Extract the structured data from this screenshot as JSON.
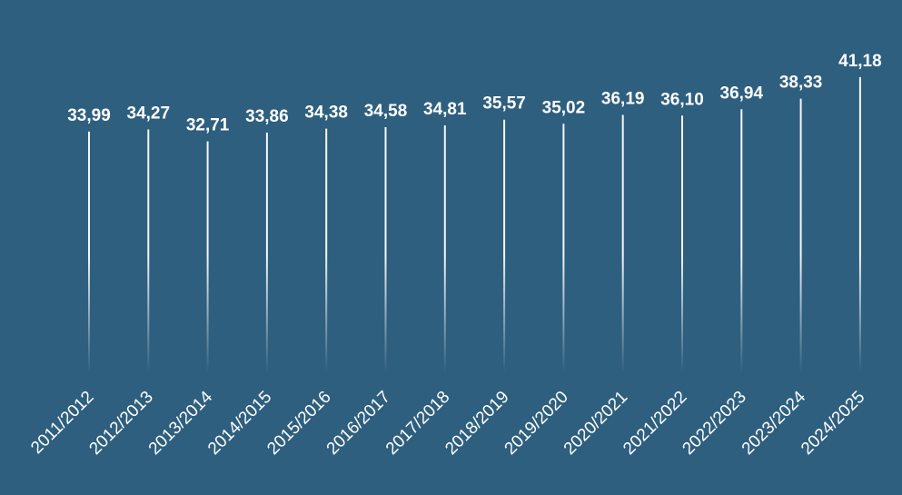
{
  "chart_data": {
    "type": "lollipop",
    "categories": [
      "2011/2012",
      "2012/2013",
      "2013/2014",
      "2014/2015",
      "2015/2016",
      "2016/2017",
      "2017/2018",
      "2018/2019",
      "2019/2020",
      "2020/2021",
      "2021/2022",
      "2022/2023",
      "2023/2024",
      "2024/2025"
    ],
    "values": [
      33.99,
      34.27,
      32.71,
      33.86,
      34.38,
      34.58,
      34.81,
      35.57,
      35.02,
      36.19,
      36.1,
      36.94,
      38.33,
      41.18
    ],
    "value_labels": [
      "33,99",
      "34,27",
      "32,71",
      "33,86",
      "34,38",
      "34,58",
      "34,81",
      "35,57",
      "35,02",
      "36,19",
      "36,10",
      "36,94",
      "38,33",
      "41,18"
    ],
    "color": "#ffffff",
    "ylim": [
      0,
      45
    ]
  }
}
